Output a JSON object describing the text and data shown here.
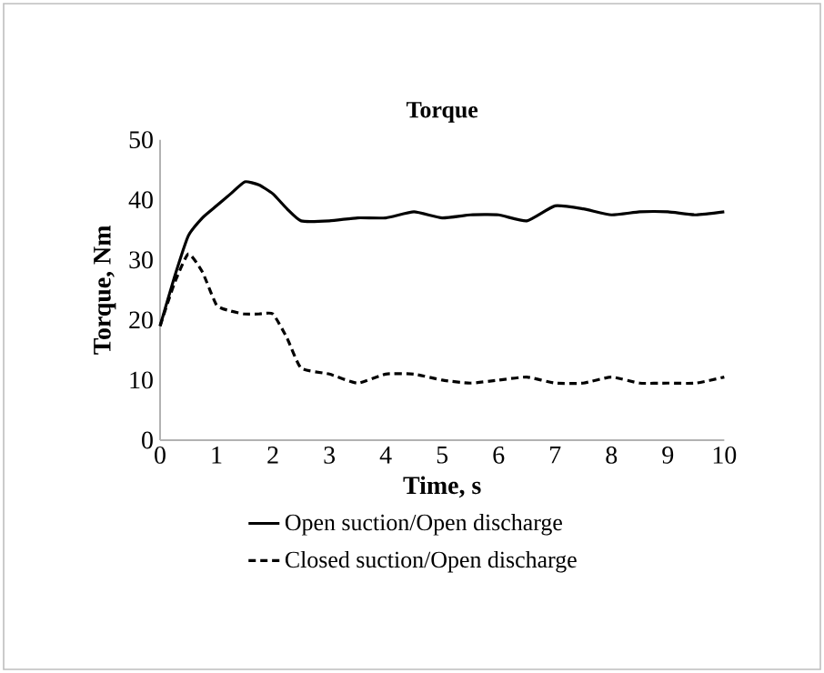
{
  "chart_data": {
    "type": "line",
    "title": "Torque",
    "xlabel": "Time, s",
    "ylabel": "Torque, Nm",
    "xlim": [
      0,
      10
    ],
    "ylim": [
      0,
      50
    ],
    "xticks": [
      0,
      1,
      2,
      3,
      4,
      5,
      6,
      7,
      8,
      9,
      10
    ],
    "yticks": [
      0,
      10,
      20,
      30,
      40,
      50
    ],
    "legend": "bottom",
    "grid": false,
    "marker": "none",
    "series": [
      {
        "name": "Open suction/Open discharge",
        "color": "#000000",
        "line_style": "solid",
        "x": [
          0,
          0.25,
          0.5,
          0.75,
          1,
          1.25,
          1.5,
          1.75,
          2,
          2.25,
          2.5,
          3,
          3.5,
          4,
          4.5,
          5,
          5.5,
          6,
          6.5,
          7,
          7.5,
          8,
          8.5,
          9,
          9.5,
          10
        ],
        "values": [
          19,
          27,
          34,
          37,
          39,
          41,
          43,
          42.5,
          41,
          38.5,
          36.5,
          36.5,
          37,
          37,
          38,
          37,
          37.5,
          37.5,
          36.5,
          39,
          38.5,
          37.5,
          38,
          38,
          37.5,
          38
        ]
      },
      {
        "name": "Closed suction/Open discharge",
        "color": "#000000",
        "line_style": "dashed",
        "x": [
          0,
          0.25,
          0.5,
          0.75,
          1,
          1.25,
          1.5,
          1.75,
          2,
          2.25,
          2.5,
          3,
          3.5,
          4,
          4.5,
          5,
          5.5,
          6,
          6.5,
          7,
          7.5,
          8,
          8.5,
          9,
          9.5,
          10
        ],
        "values": [
          19,
          26,
          31,
          28,
          22.5,
          21.5,
          21,
          21,
          21,
          17,
          12,
          11,
          9.5,
          11,
          11,
          10,
          9.5,
          10,
          10.5,
          9.5,
          9.5,
          10.5,
          9.5,
          9.5,
          9.5,
          10.5
        ]
      }
    ]
  }
}
